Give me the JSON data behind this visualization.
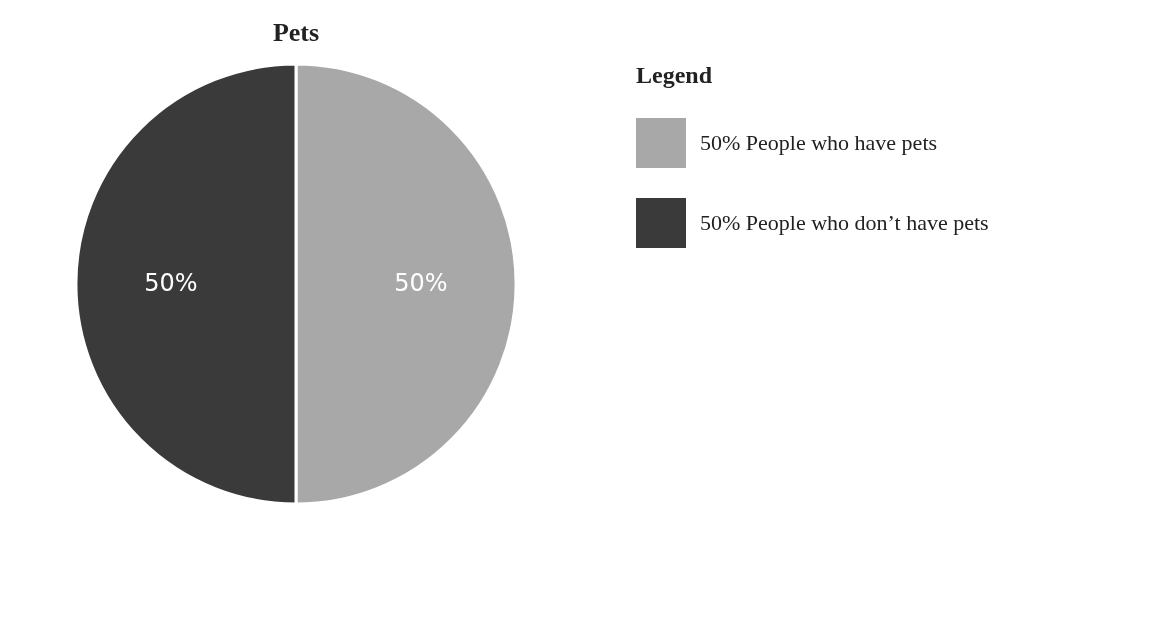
{
  "chart_data": {
    "type": "pie",
    "title": "Pets",
    "legend_title": "Legend",
    "legend": "right",
    "categories": [
      "People who have pets",
      "People who don’t have pets"
    ],
    "values": [
      50,
      50
    ],
    "colors": [
      "#a8a8a8",
      "#3a3a3a"
    ],
    "value_labels": [
      "50%",
      "50%"
    ]
  }
}
